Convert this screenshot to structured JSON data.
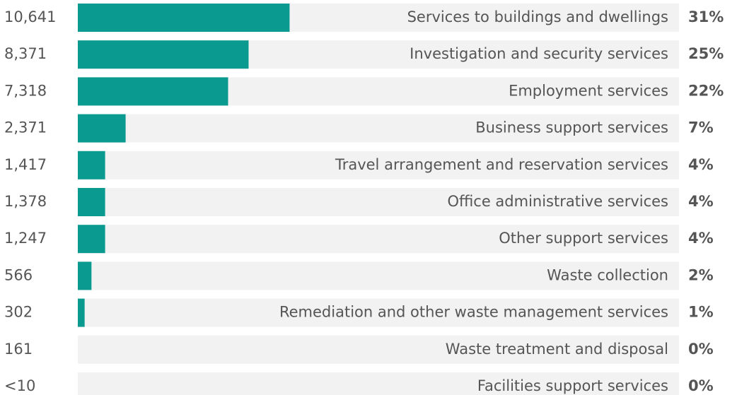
{
  "chart_data": {
    "type": "bar",
    "orientation": "horizontal",
    "categories": [
      "Services to buildings and dwellings",
      "Investigation and security services",
      "Employment services",
      "Business support services",
      "Travel arrangement and reservation services",
      "Office administrative services",
      "Other support services",
      "Waste collection",
      "Remediation and other waste management services",
      "Waste treatment and disposal",
      "Facilities support services"
    ],
    "values": [
      31,
      25,
      22,
      7,
      4,
      4,
      4,
      2,
      1,
      0,
      0
    ],
    "value_labels": [
      "31%",
      "25%",
      "22%",
      "7%",
      "4%",
      "4%",
      "4%",
      "2%",
      "1%",
      "0%",
      "0%"
    ],
    "counts": [
      10641,
      8371,
      7318,
      2371,
      1417,
      1378,
      1247,
      566,
      302,
      161,
      null
    ],
    "count_labels": [
      "10,641",
      "8,371",
      "7,318",
      "2,371",
      "1,417",
      "1,378",
      "1,247",
      "566",
      "302",
      "161",
      "<10"
    ],
    "color": "#0a9a8f",
    "track_color": "#f2f2f2",
    "xlim": [
      0,
      88
    ]
  }
}
